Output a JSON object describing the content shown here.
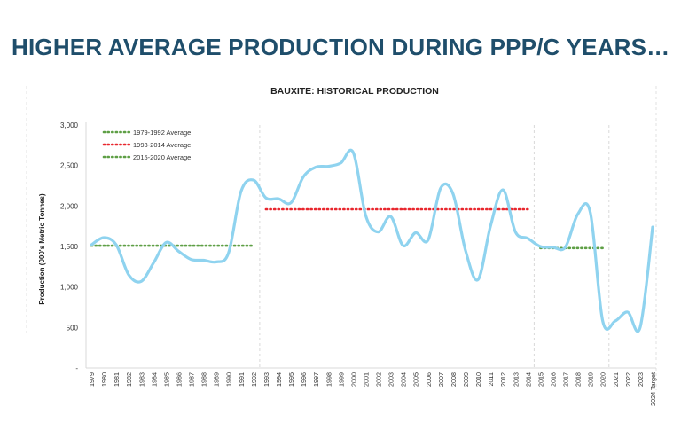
{
  "slide": {
    "title": "HIGHER AVERAGE PRODUCTION DURING PPP/C YEARS…"
  },
  "chart_data": {
    "type": "line",
    "title": "BAUXITE: HISTORICAL PRODUCTION",
    "xlabel": "",
    "ylabel": "Production (000's Metric Tonnes)",
    "ylim": [
      0,
      3000
    ],
    "yticks": [
      0,
      500,
      1000,
      1500,
      2000,
      2500,
      3000
    ],
    "ytick_labels": [
      "-",
      "500",
      "1,000",
      "1,500",
      "2,000",
      "2,500",
      "3,000"
    ],
    "grid": false,
    "legend_position": "top-left",
    "categories": [
      "1979",
      "1980",
      "1981",
      "1982",
      "1983",
      "1984",
      "1985",
      "1986",
      "1987",
      "1988",
      "1989",
      "1990",
      "1991",
      "1992",
      "1993",
      "1994",
      "1995",
      "1996",
      "1997",
      "1998",
      "1999",
      "2000",
      "2001",
      "2002",
      "2003",
      "2004",
      "2005",
      "2006",
      "2007",
      "2008",
      "2009",
      "2010",
      "2011",
      "2012",
      "2013",
      "2014",
      "2015",
      "2016",
      "2017",
      "2018",
      "2019",
      "2020",
      "2021",
      "2022",
      "2023",
      "2024 Target"
    ],
    "series": [
      {
        "values": [
          1520,
          1610,
          1520,
          1150,
          1070,
          1300,
          1550,
          1440,
          1340,
          1330,
          1310,
          1420,
          2180,
          2320,
          2100,
          2090,
          2040,
          2360,
          2480,
          2490,
          2530,
          2660,
          1880,
          1680,
          1870,
          1510,
          1670,
          1580,
          2220,
          2150,
          1450,
          1090,
          1750,
          2200,
          1680,
          1600,
          1500,
          1490,
          1490,
          1900,
          1920,
          580,
          580,
          690,
          500,
          1740
        ],
        "color": "#8fd3ef"
      }
    ],
    "averages": [
      {
        "name": "1979-1992 Average",
        "value": 1510,
        "from": "1979",
        "to": "1992",
        "color": "#5e9f45"
      },
      {
        "name": "1993-2014 Average",
        "value": 1960,
        "from": "1993",
        "to": "2014",
        "color": "#e8262d"
      },
      {
        "name": "2015-2020 Average",
        "value": 1480,
        "from": "2015",
        "to": "2020",
        "color": "#5e9f45"
      }
    ],
    "period_dividers": [
      "1992",
      "2014",
      "2020"
    ]
  }
}
